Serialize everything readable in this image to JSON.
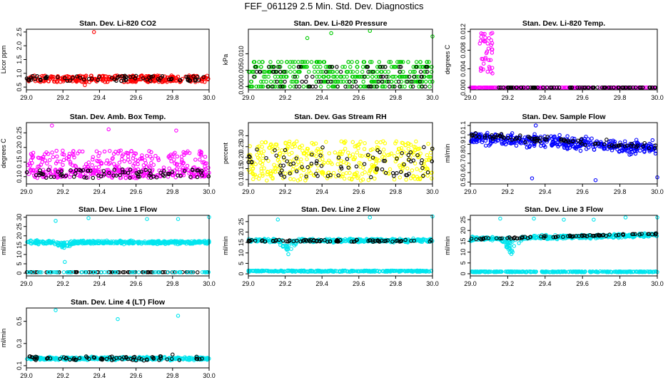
{
  "page_title": "FEF_061129  2.5 Min. Std. Dev. Diagnostics",
  "colors": {
    "black": "#000000",
    "red": "#ff0000",
    "green": "#00cc00",
    "magenta": "#ff00ff",
    "yellow": "#ffff00",
    "blue": "#0000ff",
    "cyan": "#00e5ee"
  },
  "chart_data": [
    {
      "type": "scatter",
      "title": "Stan. Dev. Li-820 CO2",
      "ylabel": "Licor ppm",
      "xlim": [
        29.0,
        30.0
      ],
      "ylim": [
        0.4,
        2.6
      ],
      "xticks": [
        "29.0",
        "29.2",
        "29.4",
        "29.6",
        "29.8",
        "30.0"
      ],
      "yticks": [
        "0.5",
        "1.0",
        "1.5",
        "2.0",
        "2.5"
      ],
      "series": [
        {
          "color": "red",
          "base": 0.8,
          "noise": 0.12,
          "count": 320,
          "jitter": "uniform"
        },
        {
          "color": "black",
          "base": 0.82,
          "noise": 0.1,
          "count": 70,
          "jitter": "uniform"
        }
      ],
      "points": [
        {
          "color": "red",
          "x": 29.37,
          "y": 2.5
        },
        {
          "color": "red",
          "x": 29.32,
          "y": 0.57
        }
      ]
    },
    {
      "type": "scatter",
      "title": "Stan. Dev. Li-820 Pressure",
      "ylabel": "kPa",
      "xlim": [
        29.0,
        30.0
      ],
      "ylim": [
        -0.001,
        0.0175
      ],
      "xticks": [
        "29.0",
        "29.2",
        "29.4",
        "29.6",
        "29.8",
        "30.0"
      ],
      "yticks": [
        "0.000",
        "0.005",
        "0.010"
      ],
      "series": [
        {
          "color": "green",
          "levels": [
            0.0,
            0.0015,
            0.003,
            0.0045,
            0.006,
            0.0075
          ],
          "count": 380
        },
        {
          "color": "black",
          "levels": [
            0.0,
            0.0015,
            0.003,
            0.0045,
            0.006
          ],
          "count": 90
        }
      ],
      "points": [
        {
          "color": "green",
          "x": 29.45,
          "y": 0.0163
        },
        {
          "color": "green",
          "x": 29.32,
          "y": 0.0148
        },
        {
          "color": "green",
          "x": 29.66,
          "y": 0.017
        },
        {
          "color": "green",
          "x": 30.0,
          "y": 0.0153
        }
      ]
    },
    {
      "type": "scatter",
      "title": "Stan. Dev. Li-820 Temp.",
      "ylabel": "degrees C",
      "xlim": [
        29.0,
        30.0
      ],
      "ylim": [
        -0.0005,
        0.0125
      ],
      "xticks": [
        "29.0",
        "29.2",
        "29.4",
        "29.6",
        "29.8",
        "30.0"
      ],
      "yticks": [
        "0.000",
        "0.004",
        "0.008",
        "0.012"
      ],
      "series": [
        {
          "color": "magenta",
          "base": 0.0,
          "noise": 0.0,
          "count": 200,
          "jitter": "uniform"
        },
        {
          "color": "black",
          "base": 0.0,
          "noise": 0.0,
          "count": 80,
          "jitter": "uniform",
          "xmin": 29.15
        }
      ],
      "spike": {
        "color": "magenta",
        "xmin": 29.05,
        "xmax": 29.12,
        "ymin": 0.003,
        "ymax": 0.0118,
        "count": 40
      }
    },
    {
      "type": "scatter",
      "title": "Stan. Dev. Amb. Box Temp.",
      "ylabel": "degrees C",
      "xlim": [
        29.0,
        30.0
      ],
      "ylim": [
        0.075,
        0.285
      ],
      "xticks": [
        "29.0",
        "29.2",
        "29.4",
        "29.6",
        "29.8",
        "30.0"
      ],
      "yticks": [
        "0.10",
        "0.15",
        "0.20",
        "0.25"
      ],
      "series": [
        {
          "color": "magenta",
          "base": 0.145,
          "noise": 0.045,
          "count": 260,
          "jitter": "uniform"
        },
        {
          "color": "magenta",
          "base": 0.11,
          "noise": 0.015,
          "count": 180,
          "jitter": "uniform"
        },
        {
          "color": "black",
          "base": 0.11,
          "noise": 0.015,
          "count": 80,
          "jitter": "uniform"
        }
      ],
      "points": [
        {
          "color": "magenta",
          "x": 29.14,
          "y": 0.275
        },
        {
          "color": "magenta",
          "x": 29.45,
          "y": 0.262
        },
        {
          "color": "magenta",
          "x": 29.82,
          "y": 0.258
        }
      ]
    },
    {
      "type": "scatter",
      "title": "Stan. Dev. Gas Stream RH",
      "ylabel": "percent",
      "xlim": [
        29.0,
        30.0
      ],
      "ylim": [
        0.08,
        0.36
      ],
      "xticks": [
        "29.0",
        "29.2",
        "29.4",
        "29.6",
        "29.8",
        "30.0"
      ],
      "yticks": [
        "0.10",
        "0.15",
        "0.20",
        "0.25",
        "0.30"
      ],
      "series": [
        {
          "color": "yellow",
          "base": 0.185,
          "noise": 0.09,
          "count": 380,
          "jitter": "uniform"
        },
        {
          "color": "black",
          "base": 0.18,
          "noise": 0.07,
          "count": 80,
          "jitter": "uniform"
        }
      ]
    },
    {
      "type": "scatter",
      "title": "Stan. Dev. Sample Flow",
      "ylabel": "ml/min",
      "xlim": [
        29.0,
        30.0
      ],
      "ylim": [
        0.48,
        1.13
      ],
      "xticks": [
        "29.0",
        "29.2",
        "29.4",
        "29.6",
        "29.8",
        "30.0"
      ],
      "yticks": [
        "0.5",
        "0.6",
        "0.7",
        "0.8",
        "0.9",
        "1.0",
        "1.1"
      ],
      "series": [
        {
          "color": "blue",
          "base": 0.87,
          "noise": 0.1,
          "count": 420,
          "jitter": "gauss",
          "trend": [
            0.97,
            0.86
          ]
        },
        {
          "color": "black",
          "base": 0.9,
          "noise": 0.05,
          "count": 80,
          "jitter": "gauss",
          "trend": [
            0.99,
            0.88
          ]
        }
      ],
      "points": [
        {
          "color": "blue",
          "x": 29.35,
          "y": 1.1
        },
        {
          "color": "blue",
          "x": 29.33,
          "y": 0.54
        },
        {
          "color": "blue",
          "x": 29.67,
          "y": 0.52
        },
        {
          "color": "blue",
          "x": 30.0,
          "y": 0.55
        }
      ]
    },
    {
      "type": "scatter",
      "title": "Stan. Dev. Line 1 Flow",
      "ylabel": "ml/min",
      "xlim": [
        29.0,
        30.0
      ],
      "ylim": [
        -1.5,
        31
      ],
      "xticks": [
        "29.0",
        "29.2",
        "29.4",
        "29.6",
        "29.8",
        "30.0"
      ],
      "yticks": [
        "0",
        "5",
        "10",
        "15",
        "20",
        "25",
        "30"
      ],
      "series": [
        {
          "color": "cyan",
          "base": 16.5,
          "noise": 1.3,
          "count": 420,
          "jitter": "gauss",
          "dip": [
            29.2,
            3.5
          ]
        },
        {
          "color": "black",
          "base": 0.5,
          "noise": 0.05,
          "count": 90,
          "jitter": "uniform"
        },
        {
          "color": "cyan",
          "base": 0.5,
          "noise": 0.05,
          "count": 60,
          "jitter": "uniform"
        }
      ],
      "points": [
        {
          "color": "cyan",
          "x": 29.16,
          "y": 28
        },
        {
          "color": "cyan",
          "x": 29.34,
          "y": 29.5
        },
        {
          "color": "cyan",
          "x": 29.66,
          "y": 29
        },
        {
          "color": "cyan",
          "x": 29.83,
          "y": 29
        },
        {
          "color": "cyan",
          "x": 30.0,
          "y": 30
        },
        {
          "color": "cyan",
          "x": 29.21,
          "y": 6
        }
      ]
    },
    {
      "type": "scatter",
      "title": "Stan. Dev. Line 2 Flow",
      "ylabel": "ml/min",
      "xlim": [
        29.0,
        30.0
      ],
      "ylim": [
        -1,
        28
      ],
      "xticks": [
        "29.0",
        "29.2",
        "29.4",
        "29.6",
        "29.8",
        "30.0"
      ],
      "yticks": [
        "0",
        "5",
        "10",
        "15",
        "20",
        "25"
      ],
      "series": [
        {
          "color": "cyan",
          "base": 16,
          "noise": 1.2,
          "count": 380,
          "jitter": "gauss",
          "dip": [
            29.22,
            7
          ]
        },
        {
          "color": "black",
          "base": 15.8,
          "noise": 0.5,
          "count": 80,
          "jitter": "uniform"
        },
        {
          "color": "cyan",
          "base": 1.3,
          "noise": 0.3,
          "count": 300,
          "jitter": "uniform"
        }
      ],
      "points": [
        {
          "color": "cyan",
          "x": 29.16,
          "y": 26
        },
        {
          "color": "cyan",
          "x": 29.66,
          "y": 27
        },
        {
          "color": "cyan",
          "x": 30.0,
          "y": 27.5
        }
      ]
    },
    {
      "type": "scatter",
      "title": "Stan. Dev. Line 3 Flow",
      "ylabel": "ml/min",
      "xlim": [
        29.0,
        30.0
      ],
      "ylim": [
        -1,
        27
      ],
      "xticks": [
        "29.0",
        "29.2",
        "29.4",
        "29.6",
        "29.8",
        "30.0"
      ],
      "yticks": [
        "0",
        "5",
        "10",
        "15",
        "20",
        "25"
      ],
      "series": [
        {
          "color": "cyan",
          "base": 16.5,
          "noise": 1.3,
          "count": 400,
          "jitter": "gauss",
          "dip": [
            29.22,
            8
          ],
          "trend": [
            16,
            18
          ]
        },
        {
          "color": "black",
          "base": 17,
          "noise": 0.4,
          "count": 80,
          "jitter": "uniform",
          "trend": [
            16,
            18.5
          ]
        },
        {
          "color": "cyan",
          "base": 0.9,
          "noise": 0.2,
          "count": 300,
          "jitter": "uniform"
        }
      ],
      "points": [
        {
          "color": "cyan",
          "x": 29.16,
          "y": 25.5
        },
        {
          "color": "cyan",
          "x": 29.34,
          "y": 25.5
        },
        {
          "color": "cyan",
          "x": 29.5,
          "y": 25
        },
        {
          "color": "cyan",
          "x": 29.66,
          "y": 25
        },
        {
          "color": "cyan",
          "x": 29.83,
          "y": 26
        },
        {
          "color": "cyan",
          "x": 30.0,
          "y": 26
        }
      ]
    },
    {
      "type": "scatter",
      "title": "Stan. Dev. Line 4 (LT) Flow",
      "ylabel": "ml/min",
      "xlim": [
        29.0,
        30.0
      ],
      "ylim": [
        0.08,
        0.62
      ],
      "xticks": [
        "29.0",
        "29.2",
        "29.4",
        "29.6",
        "29.8",
        "30.0"
      ],
      "yticks": [
        "0.1",
        "0.3",
        "0.5"
      ],
      "series": [
        {
          "color": "cyan",
          "base": 0.165,
          "noise": 0.02,
          "count": 380,
          "jitter": "gauss"
        },
        {
          "color": "black",
          "base": 0.165,
          "noise": 0.02,
          "count": 70,
          "jitter": "uniform"
        }
      ],
      "points": [
        {
          "color": "cyan",
          "x": 29.16,
          "y": 0.6
        },
        {
          "color": "cyan",
          "x": 29.5,
          "y": 0.52
        },
        {
          "color": "cyan",
          "x": 29.83,
          "y": 0.55
        },
        {
          "color": "black",
          "x": 29.8,
          "y": 0.2
        }
      ]
    }
  ]
}
